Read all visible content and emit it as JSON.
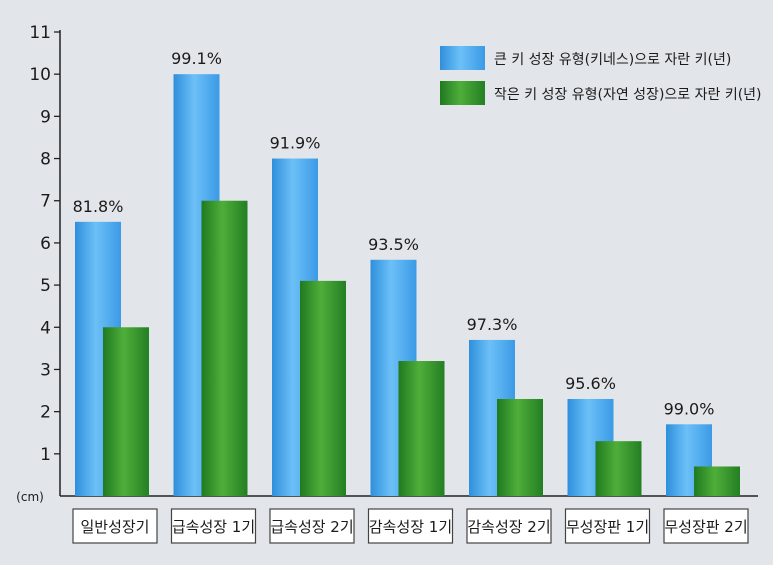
{
  "chart_data": {
    "type": "bar",
    "categories": [
      "일반성장기",
      "급속성장 1기",
      "급속성장 2기",
      "감속성장 1기",
      "감속성장 2기",
      "무성장판 1기",
      "무성장판 2기"
    ],
    "series": [
      {
        "name": "큰 키 성장 유형(키네스)으로 자란 키(년)",
        "color": "#4aa8ee",
        "values": [
          6.5,
          10.0,
          8.0,
          5.6,
          3.7,
          2.3,
          1.7
        ]
      },
      {
        "name": "작은 키 성장 유형(자연 성장)으로 자란 키(년)",
        "color": "#2e8f2e",
        "values": [
          4.0,
          7.0,
          5.1,
          3.2,
          2.3,
          1.3,
          0.7
        ]
      }
    ],
    "data_labels": [
      "81.8%",
      "99.1%",
      "91.9%",
      "93.5%",
      "97.3%",
      "95.6%",
      "99.0%"
    ],
    "ylim": [
      0,
      11
    ],
    "yticks": [
      "1",
      "2",
      "3",
      "4",
      "5",
      "6",
      "7",
      "8",
      "9",
      "10",
      "11"
    ],
    "unit": "(cm)",
    "legend_position": "top-right",
    "grid": false
  }
}
